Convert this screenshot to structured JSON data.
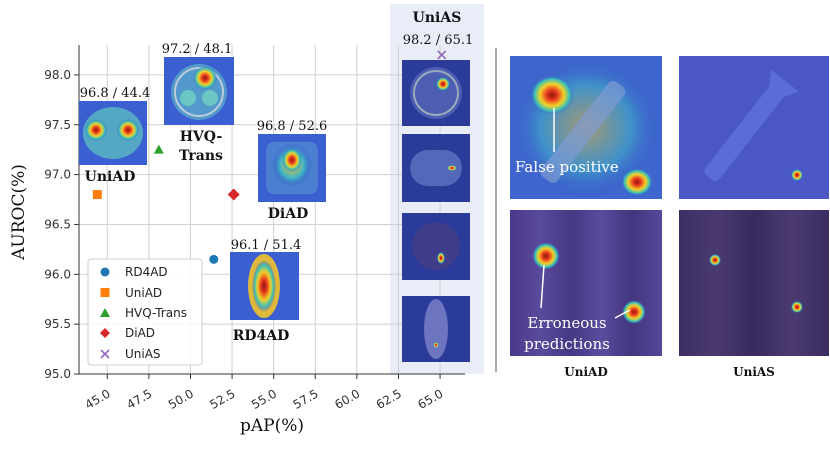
{
  "chart_data": {
    "type": "scatter",
    "xlabel": "pAP(%)",
    "ylabel": "AUROC(%)",
    "xlim": [
      43.3,
      66.5
    ],
    "ylim": [
      95.0,
      98.3
    ],
    "xticks": [
      "45.0",
      "47.5",
      "50.0",
      "52.5",
      "55.0",
      "57.5",
      "60.0",
      "62.5",
      "65.0"
    ],
    "yticks": [
      "95.0",
      "95.5",
      "96.0",
      "96.5",
      "97.0",
      "97.5",
      "98.0"
    ],
    "grid": true,
    "legend_position": "lower-left",
    "series": [
      {
        "name": "RD4AD",
        "x": 51.4,
        "y": 96.15,
        "color": "#1f77b4",
        "marker": "circle",
        "annotation": "96.1 / 51.4",
        "label": "RD4AD"
      },
      {
        "name": "UniAD",
        "x": 44.4,
        "y": 96.8,
        "color": "#ff7f0e",
        "marker": "square",
        "annotation": "96.8 / 44.4",
        "label": "UniAD"
      },
      {
        "name": "HVQ-Trans",
        "x": 48.1,
        "y": 97.25,
        "color": "#2ca02c",
        "marker": "triangle",
        "annotation": "97.2 / 48.1",
        "label_line1": "HVQ-",
        "label_line2": "Trans"
      },
      {
        "name": "DiAD",
        "x": 52.6,
        "y": 96.8,
        "color": "#d62728",
        "marker": "diamond",
        "annotation": "96.8 / 52.6",
        "label": "DiAD"
      },
      {
        "name": "UniAS",
        "x": 65.1,
        "y": 98.2,
        "color": "#9467bd",
        "marker": "x",
        "annotation": "98.2 / 65.1",
        "label": "UniAS"
      }
    ]
  },
  "comparison": {
    "overlay_false_positive": "False positive",
    "overlay_erroneous_line1": "Erroneous",
    "overlay_erroneous_line2": "predictions",
    "caption_left": "UniAD",
    "caption_right": "UniAS"
  },
  "colors": {
    "panel_bg": "#e8edf7",
    "heat_hot": "#e03b1f",
    "heat_bg": "#3a4fc4"
  }
}
